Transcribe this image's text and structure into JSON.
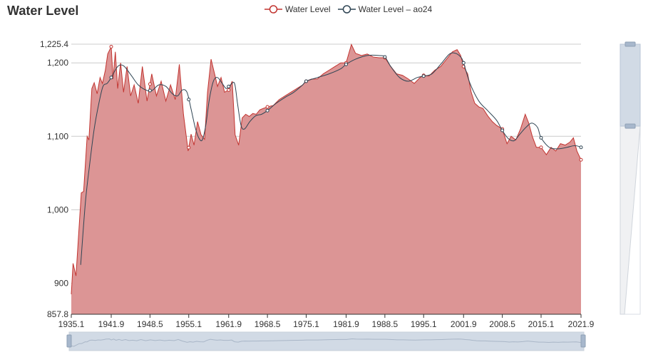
{
  "chart_data": {
    "type": "area",
    "title": "Water Level",
    "xlabel": "",
    "ylabel": "",
    "xlim": [
      1935.1,
      2021.9
    ],
    "ylim": [
      857.8,
      1225.4
    ],
    "x_tick_labels": [
      "1935.1",
      "1941.9",
      "1948.5",
      "1955.1",
      "1961.9",
      "1968.5",
      "1975.1",
      "1981.9",
      "1988.5",
      "1995.1",
      "2001.9",
      "2008.5",
      "2015.1",
      "2021.9"
    ],
    "y_tick_labels": [
      "857.8",
      "900",
      "1,000",
      "1,100",
      "1,200",
      "1,225.4"
    ],
    "grid": true,
    "legend_position": "top",
    "series": [
      {
        "name": "Water Level",
        "kind": "area",
        "color": "#c23531",
        "fill": "#dc9595",
        "x": [
          1935.1,
          1935.4,
          1935.9,
          1936.8,
          1937.2,
          1937.8,
          1938.1,
          1938.6,
          1939.0,
          1939.5,
          1940.0,
          1940.4,
          1940.9,
          1941.3,
          1941.9,
          1942.2,
          1942.6,
          1943.0,
          1943.5,
          1944.0,
          1944.6,
          1945.2,
          1945.8,
          1946.5,
          1947.2,
          1948.0,
          1948.8,
          1949.6,
          1950.4,
          1951.2,
          1952.0,
          1952.8,
          1953.5,
          1954.2,
          1955.0,
          1955.5,
          1956.0,
          1956.6,
          1957.2,
          1957.8,
          1958.3,
          1958.9,
          1959.5,
          1960.0,
          1960.6,
          1961.2,
          1961.9,
          1962.5,
          1963.0,
          1963.6,
          1964.2,
          1964.8,
          1965.4,
          1966.0,
          1966.6,
          1967.2,
          1967.8,
          1968.5,
          1969.5,
          1970.5,
          1971.5,
          1972.5,
          1973.5,
          1974.5,
          1975.1,
          1976.0,
          1977.0,
          1978.0,
          1979.0,
          1980.0,
          1981.0,
          1981.9,
          1982.8,
          1983.5,
          1984.5,
          1985.5,
          1986.5,
          1987.5,
          1988.5,
          1989.5,
          1990.5,
          1991.5,
          1992.5,
          1993.5,
          1994.5,
          1995.1,
          1996.0,
          1997.0,
          1998.0,
          1999.0,
          2000.0,
          2000.8,
          2001.4,
          2001.9,
          2002.6,
          2003.2,
          2003.8,
          2004.5,
          2005.2,
          2006.0,
          2006.8,
          2007.5,
          2008.5,
          2009.3,
          2010.0,
          2010.8,
          2011.6,
          2012.4,
          2013.0,
          2013.6,
          2014.3,
          2015.1,
          2016.0,
          2016.8,
          2017.6,
          2018.4,
          2019.2,
          2020.0,
          2020.6,
          2021.2,
          2021.9
        ],
        "values": [
          885,
          927,
          910,
          1023,
          1025,
          1100,
          1095,
          1165,
          1173,
          1158,
          1180,
          1172,
          1190,
          1212,
          1222,
          1178,
          1215,
          1165,
          1200,
          1160,
          1195,
          1155,
          1170,
          1145,
          1195,
          1148,
          1185,
          1155,
          1175,
          1148,
          1170,
          1150,
          1198,
          1130,
          1080,
          1103,
          1088,
          1120,
          1102,
          1096,
          1160,
          1205,
          1185,
          1168,
          1180,
          1160,
          1163,
          1175,
          1102,
          1088,
          1125,
          1130,
          1127,
          1131,
          1130,
          1136,
          1138,
          1140,
          1142,
          1150,
          1155,
          1160,
          1165,
          1170,
          1175,
          1178,
          1178,
          1185,
          1190,
          1195,
          1200,
          1200,
          1225,
          1213,
          1210,
          1212,
          1208,
          1207,
          1207,
          1195,
          1185,
          1183,
          1178,
          1172,
          1180,
          1183,
          1182,
          1190,
          1195,
          1205,
          1215,
          1218,
          1210,
          1195,
          1185,
          1160,
          1145,
          1140,
          1138,
          1128,
          1120,
          1115,
          1110,
          1090,
          1100,
          1095,
          1110,
          1130,
          1118,
          1100,
          1085,
          1085,
          1075,
          1085,
          1080,
          1090,
          1088,
          1092,
          1098,
          1080,
          1068
        ]
      },
      {
        "name": "Water Level – ao24",
        "kind": "smoothed-line",
        "color": "#2f4554",
        "x": [
          1936.7,
          1937.5,
          1938.2,
          1939.0,
          1939.8,
          1940.5,
          1941.2,
          1941.9,
          1943.0,
          1944.0,
          1945.3,
          1946.5,
          1947.8,
          1948.8,
          1950.0,
          1951.2,
          1952.3,
          1953.2,
          1954.0,
          1954.8,
          1955.5,
          1956.2,
          1956.8,
          1957.4,
          1958.0,
          1958.6,
          1959.3,
          1960.0,
          1960.8,
          1961.5,
          1962.2,
          1962.9,
          1963.4,
          1964.0,
          1964.6,
          1965.5,
          1966.5,
          1967.5,
          1968.5,
          1970.0,
          1971.5,
          1973.0,
          1974.5,
          1975.1,
          1977.0,
          1979.0,
          1981.0,
          1981.9,
          1983.5,
          1985.5,
          1987.5,
          1988.5,
          1989.5,
          1991.0,
          1992.5,
          1994.0,
          1995.1,
          1996.5,
          1998.0,
          1999.5,
          2000.5,
          2001.4,
          2001.9,
          2003.0,
          2004.5,
          2006.0,
          2007.5,
          2008.5,
          2009.5,
          2010.5,
          2011.5,
          2012.5,
          2013.5,
          2014.5,
          2015.1,
          2016.5,
          2018.0,
          2019.5,
          2020.5,
          2021.2,
          2021.9
        ],
        "values": [
          925,
          1010,
          1060,
          1110,
          1145,
          1168,
          1172,
          1180,
          1195,
          1196,
          1183,
          1170,
          1163,
          1162,
          1170,
          1168,
          1158,
          1155,
          1163,
          1160,
          1137,
          1112,
          1098,
          1095,
          1115,
          1150,
          1175,
          1180,
          1172,
          1165,
          1170,
          1172,
          1145,
          1115,
          1110,
          1120,
          1128,
          1130,
          1135,
          1145,
          1153,
          1160,
          1170,
          1175,
          1180,
          1185,
          1192,
          1198,
          1205,
          1210,
          1210,
          1208,
          1195,
          1180,
          1175,
          1180,
          1182,
          1185,
          1198,
          1212,
          1213,
          1208,
          1200,
          1172,
          1148,
          1135,
          1122,
          1108,
          1097,
          1094,
          1103,
          1112,
          1118,
          1112,
          1098,
          1085,
          1083,
          1085,
          1087,
          1087,
          1085
        ]
      }
    ]
  }
}
